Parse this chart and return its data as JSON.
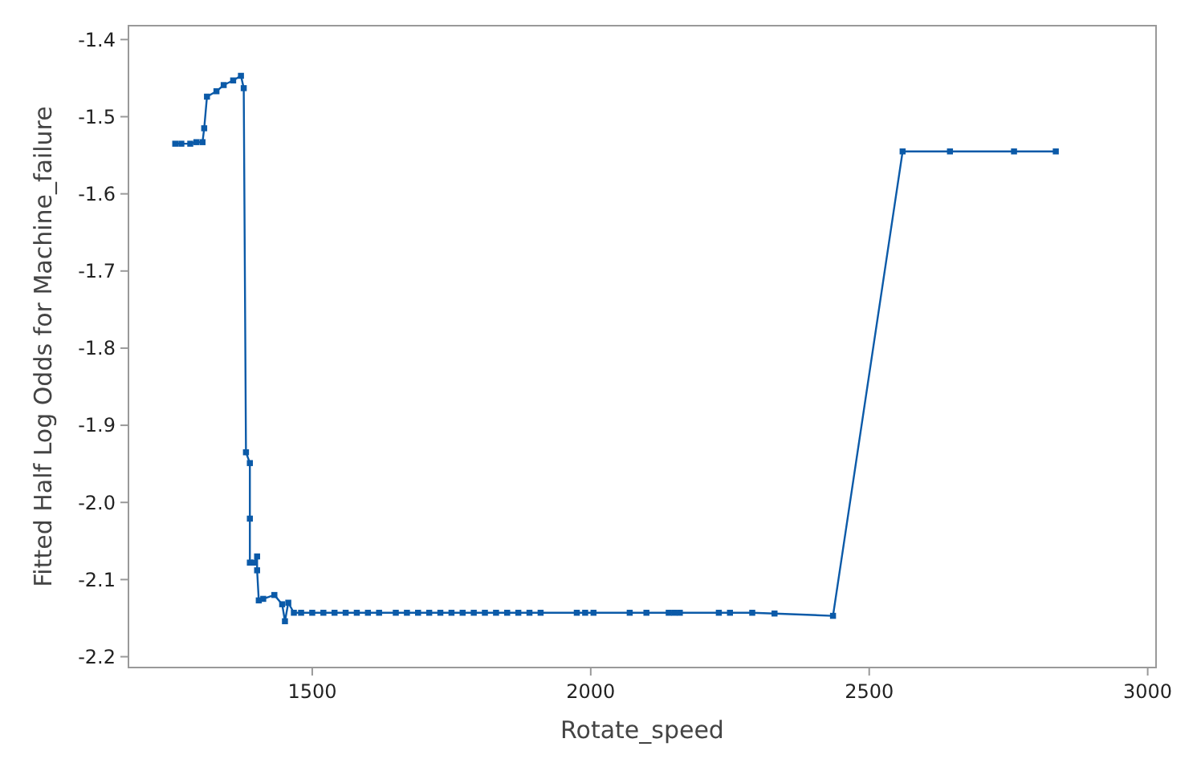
{
  "chart_data": {
    "type": "line",
    "xlabel": "Rotate_speed",
    "ylabel": "Fitted Half Log Odds for Machine_failure",
    "xlim": [
      1170,
      3015
    ],
    "xticks": [
      1500,
      2000,
      2500,
      3000
    ],
    "ylim": [
      -2.214,
      -1.382
    ],
    "yticks": [
      {
        "value": -2.2,
        "label": "-2.2"
      },
      {
        "value": -2.1,
        "label": "-2.1"
      },
      {
        "value": -2.0,
        "label": "-2.0"
      },
      {
        "value": -1.9,
        "label": "-1.9"
      },
      {
        "value": -1.8,
        "label": "-1.8"
      },
      {
        "value": -1.7,
        "label": "-1.7"
      },
      {
        "value": -1.6,
        "label": "-1.6"
      },
      {
        "value": -1.5,
        "label": "-1.5"
      },
      {
        "value": -1.4,
        "label": "-1.4"
      }
    ],
    "grid": false,
    "marker": "square",
    "line_style": "solid",
    "series": [
      {
        "color": "#0b5aa8",
        "x": [
          1254,
          1265,
          1281,
          1292,
          1303,
          1306,
          1311,
          1328,
          1341,
          1358,
          1372,
          1377,
          1381,
          1388,
          1388,
          1388,
          1396,
          1401,
          1401,
          1404,
          1412,
          1432,
          1446,
          1451,
          1457,
          1467,
          1480,
          1500,
          1520,
          1540,
          1560,
          1580,
          1600,
          1620,
          1650,
          1670,
          1690,
          1710,
          1730,
          1750,
          1770,
          1790,
          1810,
          1830,
          1850,
          1870,
          1890,
          1910,
          1975,
          1990,
          2005,
          2070,
          2100,
          2140,
          2150,
          2160,
          2230,
          2250,
          2290,
          2330,
          2435,
          2560,
          2645,
          2760,
          2835
        ],
        "values": [
          -1.535,
          -1.535,
          -1.535,
          -1.533,
          -1.533,
          -1.515,
          -1.474,
          -1.467,
          -1.459,
          -1.453,
          -1.447,
          -1.463,
          -1.935,
          -1.949,
          -2.021,
          -2.078,
          -2.078,
          -2.07,
          -2.088,
          -2.127,
          -2.125,
          -2.12,
          -2.132,
          -2.154,
          -2.13,
          -2.143,
          -2.143,
          -2.143,
          -2.143,
          -2.143,
          -2.143,
          -2.143,
          -2.143,
          -2.143,
          -2.143,
          -2.143,
          -2.143,
          -2.143,
          -2.143,
          -2.143,
          -2.143,
          -2.143,
          -2.143,
          -2.143,
          -2.143,
          -2.143,
          -2.143,
          -2.143,
          -2.143,
          -2.143,
          -2.143,
          -2.143,
          -2.143,
          -2.143,
          -2.143,
          -2.143,
          -2.143,
          -2.143,
          -2.143,
          -2.144,
          -2.147,
          -1.545,
          -1.545,
          -1.545,
          -1.545
        ]
      }
    ]
  }
}
